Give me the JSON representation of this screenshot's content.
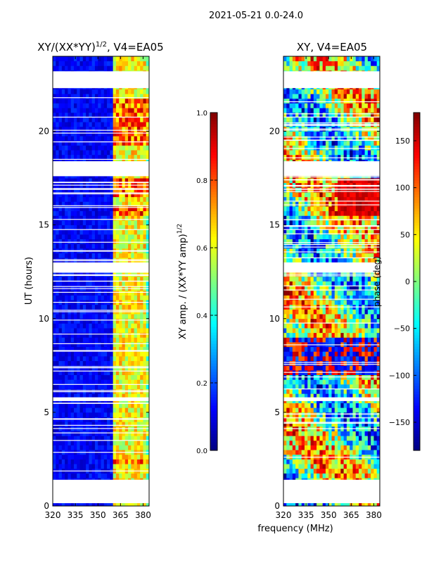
{
  "suptitle": "2021-05-21 0.0-24.0",
  "shared": {
    "ylabel": "UT (hours)",
    "xlabel": "frequency (MHz)",
    "x_ticks": [
      320,
      335,
      350,
      365,
      380
    ],
    "xlim": [
      320,
      384
    ],
    "y_ticks": [
      0,
      5,
      10,
      15,
      20
    ],
    "ylim": [
      0,
      24
    ]
  },
  "chart_data": [
    {
      "type": "heatmap",
      "title_main": "XY/(XX*YY)",
      "title_sup": "1/2",
      "title_tail": ", V4=EA05",
      "colormap": "jet",
      "colorbar": {
        "label_main": "XY amp. / (XX*YY amp)",
        "label_sup": "1/2",
        "range": [
          0.0,
          1.0
        ],
        "ticks": [
          "0.0",
          "0.2",
          "0.4",
          "0.6",
          "0.8",
          "1.0"
        ]
      },
      "gaps_hours": [
        [
          0.15,
          1.4
        ],
        [
          5.6,
          5.8
        ],
        [
          12.45,
          13.0
        ],
        [
          17.6,
          18.4
        ],
        [
          22.3,
          23.2
        ]
      ],
      "bright_channels_MHz": [
        362,
        364,
        367,
        369,
        372,
        374,
        376,
        378,
        380
      ],
      "bright_blocks_hours": [
        [
          2.2,
          2.6
        ],
        [
          15.5,
          15.9
        ],
        [
          16.6,
          17.0
        ],
        [
          17.1,
          17.5
        ],
        [
          19.2,
          21.8
        ]
      ]
    },
    {
      "type": "heatmap",
      "title": "XY, V4=EA05",
      "colormap": "jet",
      "colorbar": {
        "label": "phase (deg)",
        "range": [
          -180,
          180
        ],
        "ticks": [
          "−150",
          "−100",
          "−50",
          "0",
          "50",
          "100",
          "150"
        ]
      },
      "gaps_hours": [
        [
          0.15,
          1.4
        ],
        [
          5.6,
          5.8
        ],
        [
          12.45,
          13.0
        ],
        [
          17.6,
          18.4
        ],
        [
          22.3,
          23.2
        ]
      ]
    }
  ],
  "colors": {
    "axis": "#000000",
    "background": "#ffffff",
    "gap": "#ffffff"
  }
}
